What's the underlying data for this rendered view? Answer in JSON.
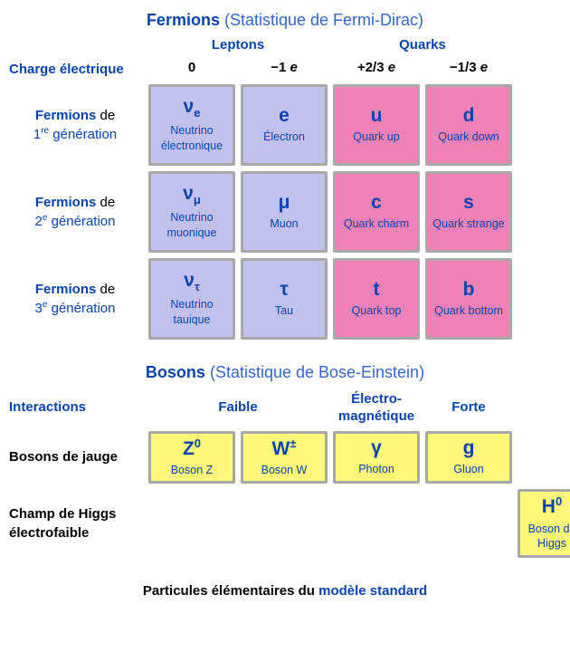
{
  "colors": {
    "lepton_bg": "#c1c1f0",
    "quark_bg": "#f082b8",
    "boson_bg": "#fdf87a",
    "higgs_bg": "#fdf87a",
    "border": "#a8a8a8",
    "link": "#0645ad",
    "text": "#000000",
    "background": "#ffffff"
  },
  "fermions": {
    "title_bold": "Fermions",
    "title_paren_open": " (",
    "title_link": "Statistique de Fermi-Dirac",
    "title_paren_close": ")",
    "group_labels": {
      "leptons": "Leptons",
      "quarks": "Quarks"
    },
    "charge_label": "Charge électrique",
    "charges": [
      "0",
      "−1 e",
      "+2/3 e",
      "−1/3 e"
    ],
    "rows": [
      {
        "label_pre": "Fermions",
        "label_de": " de",
        "label_gen": "1<sup>re</sup> génération",
        "cells": [
          {
            "sym": "ν<sub>e</sub>",
            "name": "Neutrino électronique",
            "color_key": "lepton_bg"
          },
          {
            "sym": "e",
            "name": "Électron",
            "color_key": "lepton_bg"
          },
          {
            "sym": "u",
            "name": "Quark up",
            "color_key": "quark_bg"
          },
          {
            "sym": "d",
            "name": "Quark down",
            "color_key": "quark_bg"
          }
        ]
      },
      {
        "label_pre": "Fermions",
        "label_de": " de",
        "label_gen": "2<sup>e</sup> génération",
        "cells": [
          {
            "sym": "ν<sub>μ</sub>",
            "name": "Neutrino muonique",
            "color_key": "lepton_bg"
          },
          {
            "sym": "μ",
            "name": "Muon",
            "color_key": "lepton_bg"
          },
          {
            "sym": "c",
            "name": "Quark charm",
            "color_key": "quark_bg"
          },
          {
            "sym": "s",
            "name": "Quark strange",
            "color_key": "quark_bg"
          }
        ]
      },
      {
        "label_pre": "Fermions",
        "label_de": " de",
        "label_gen": "3<sup>e</sup> génération",
        "cells": [
          {
            "sym": "ν<sub>τ</sub>",
            "name": "Neutrino tauique",
            "color_key": "lepton_bg"
          },
          {
            "sym": "τ",
            "name": "Tau",
            "color_key": "lepton_bg"
          },
          {
            "sym": "t",
            "name": "Quark top",
            "color_key": "quark_bg"
          },
          {
            "sym": "b",
            "name": "Quark bottom",
            "color_key": "quark_bg"
          }
        ]
      }
    ]
  },
  "bosons": {
    "title_bold": "Bosons",
    "title_paren_open": " (",
    "title_link": "Statistique de Bose-Einstein",
    "title_paren_close": ")",
    "interactions_label": "Interactions",
    "interaction_headers": [
      "Faible",
      "Électro-magnétique",
      "Forte"
    ],
    "gauge_row_label": "Bosons de jauge",
    "gauge_cells": [
      {
        "sym": "Z<sup>0</sup>",
        "name": "Boson Z",
        "color_key": "boson_bg"
      },
      {
        "sym": "W<sup>±</sup>",
        "name": "Boson W",
        "color_key": "boson_bg"
      },
      {
        "sym": "γ",
        "name": "Photon",
        "color_key": "boson_bg"
      },
      {
        "sym": "g",
        "name": "Gluon",
        "color_key": "boson_bg"
      }
    ],
    "higgs_row_label": "Champ de Higgs électrofaible",
    "higgs_cell": {
      "sym": "H<sup>0</sup>",
      "name": "Boson de Higgs",
      "color_key": "higgs_bg"
    }
  },
  "caption": {
    "text": "Particules élémentaires du ",
    "link": "modèle standard"
  }
}
